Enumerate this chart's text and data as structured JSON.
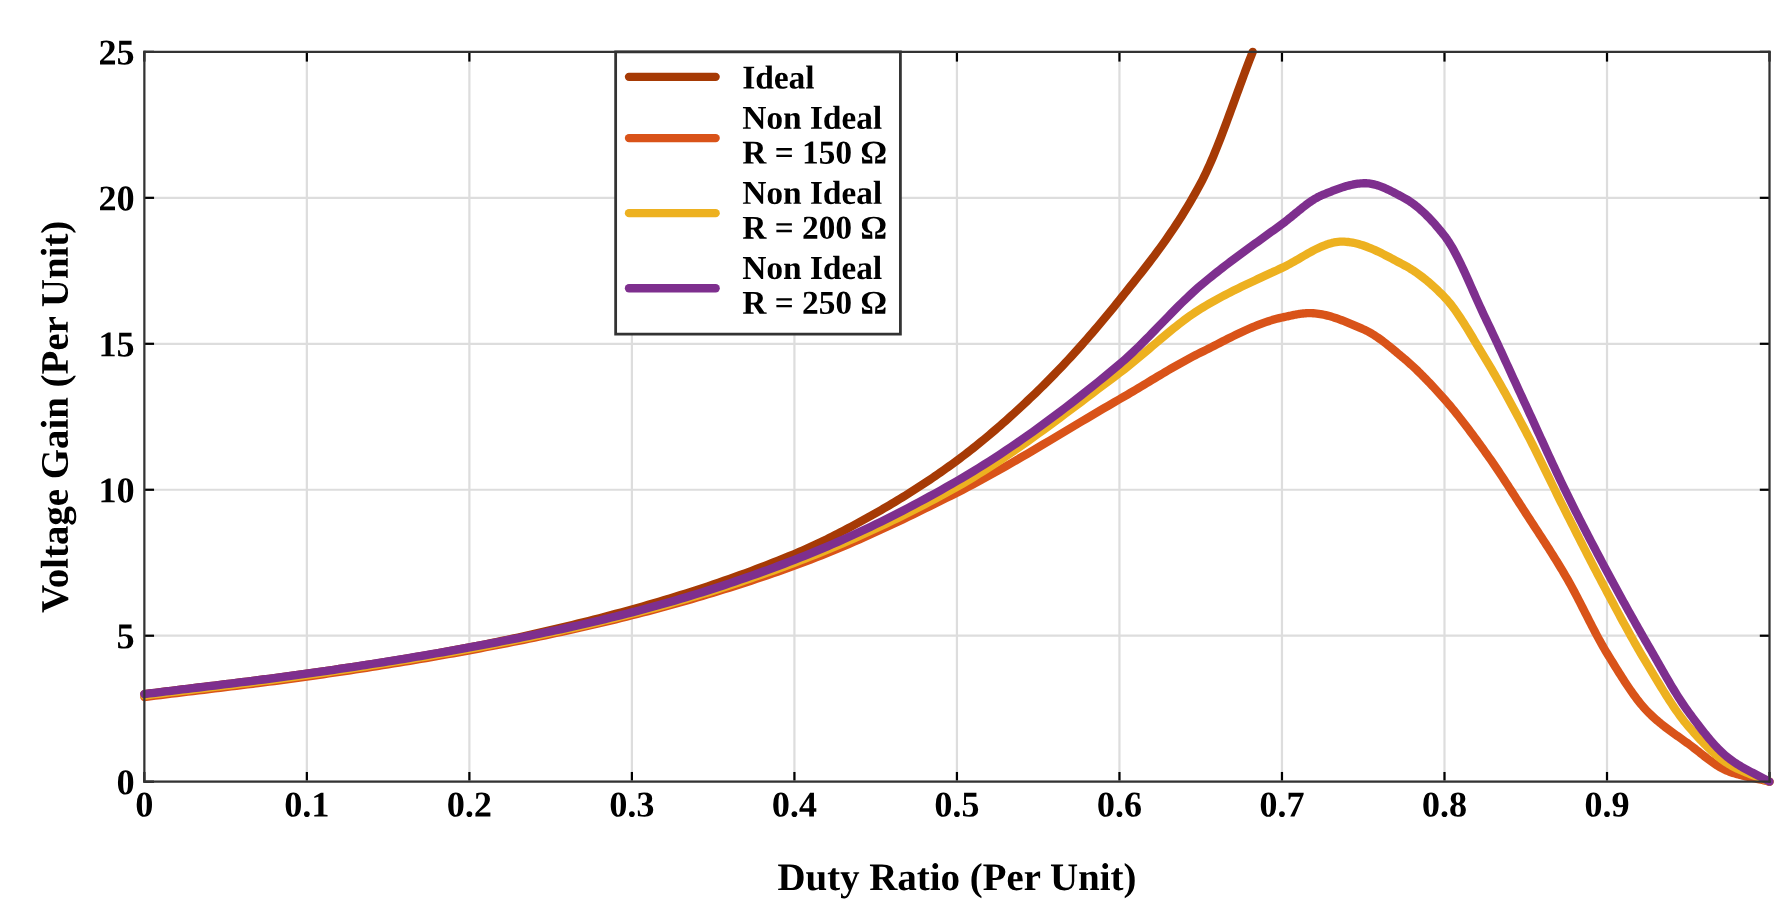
{
  "chart_data": {
    "type": "line",
    "xlabel": "Duty Ratio (Per Unit)",
    "ylabel": "Voltage Gain (Per Unit)",
    "xlim": [
      0,
      1
    ],
    "ylim": [
      0,
      25
    ],
    "xticks": [
      0,
      0.1,
      0.2,
      0.3,
      0.4,
      0.5,
      0.6,
      0.7,
      0.8,
      0.9,
      {
        "value": 1,
        "label": null
      }
    ],
    "yticks": [
      0,
      5,
      10,
      15,
      20,
      25
    ],
    "grid": true,
    "legend": "top",
    "line_style": "solid",
    "marker": "none",
    "series": [
      {
        "name": "Ideal",
        "color": "#a63a05",
        "x": [
          0,
          0.1,
          0.2,
          0.3,
          0.4,
          0.45,
          0.5,
          0.55,
          0.6,
          0.65,
          0.682
        ],
        "values": [
          3,
          3.7,
          4.6,
          5.9,
          7.8,
          9.2,
          11,
          13.4,
          16.5,
          20.5,
          25
        ]
      },
      {
        "name": "Non Ideal\nR = 150 Ω",
        "color": "#d95319",
        "x": [
          0,
          0.1,
          0.2,
          0.3,
          0.4,
          0.5,
          0.6,
          0.65,
          0.7,
          0.717,
          0.75,
          0.775,
          0.8,
          0.825,
          0.85,
          0.875,
          0.9,
          0.925,
          0.95,
          0.975,
          1
        ],
        "values": [
          2.9,
          3.6,
          4.5,
          5.7,
          7.4,
          9.9,
          13.1,
          14.7,
          15.9,
          16.05,
          15.5,
          14.5,
          13.1,
          11.3,
          9.2,
          7.0,
          4.4,
          2.4,
          1.3,
          0.35,
          0
        ]
      },
      {
        "name": "Non Ideal\nR = 200 Ω",
        "color": "#edb120",
        "x": [
          0,
          0.1,
          0.2,
          0.3,
          0.4,
          0.5,
          0.6,
          0.65,
          0.7,
          0.737,
          0.775,
          0.8,
          0.825,
          0.85,
          0.875,
          0.9,
          0.925,
          0.95,
          0.975,
          1
        ],
        "values": [
          2.95,
          3.65,
          4.55,
          5.75,
          7.5,
          10.1,
          14.0,
          16.2,
          17.6,
          18.5,
          17.7,
          16.6,
          14.5,
          12.0,
          9.2,
          6.5,
          4.0,
          1.9,
          0.6,
          0
        ]
      },
      {
        "name": "Non Ideal\nR = 250 Ω",
        "color": "#7e2f8e",
        "x": [
          0,
          0.1,
          0.2,
          0.3,
          0.4,
          0.5,
          0.6,
          0.65,
          0.7,
          0.725,
          0.751,
          0.775,
          0.8,
          0.825,
          0.85,
          0.875,
          0.9,
          0.925,
          0.95,
          0.975,
          1
        ],
        "values": [
          3,
          3.7,
          4.6,
          5.8,
          7.6,
          10.3,
          14.3,
          17.0,
          19.1,
          20.1,
          20.5,
          20.0,
          18.7,
          15.9,
          12.9,
          9.9,
          7.2,
          4.7,
          2.4,
          0.8,
          0
        ]
      }
    ]
  }
}
